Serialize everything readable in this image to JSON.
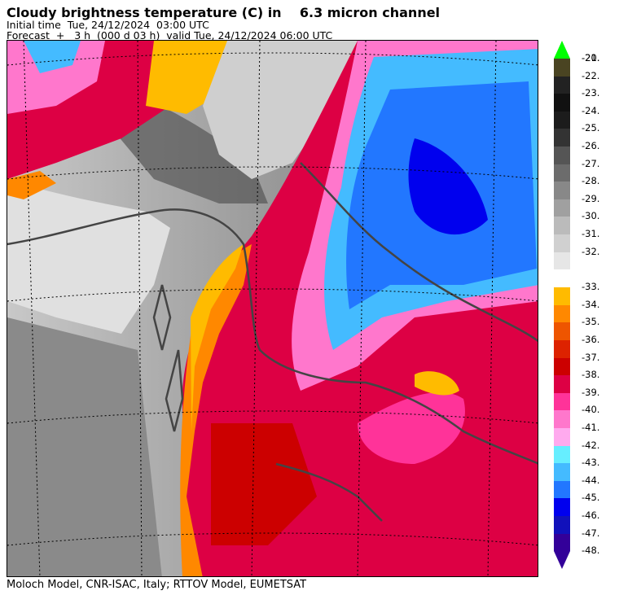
{
  "header": {
    "title": "Cloudy brightness temperature (C) in    6.3 micron channel",
    "initial_time": "Initial time  Tue, 24/12/2024  03:00 UTC",
    "forecast": "Forecast  +   3 h  (000 d 03 h)  valid Tue, 24/12/2024 06:00 UTC"
  },
  "footer": "Moloch Model, CNR-ISAC, Italy; RTTOV Model, EUMETSAT",
  "legend": {
    "upper": [
      {
        "label": "-20.",
        "color": "#66aa22"
      },
      {
        "label": "-21.",
        "color": "#4a4422"
      },
      {
        "label": "-22.",
        "color": "#222222"
      },
      {
        "label": "-23.",
        "color": "#111111"
      },
      {
        "label": "-24.",
        "color": "#1c1c1c"
      },
      {
        "label": "-25.",
        "color": "#333333"
      },
      {
        "label": "-26.",
        "color": "#555555"
      },
      {
        "label": "-27.",
        "color": "#6c6c6c"
      },
      {
        "label": "-28.",
        "color": "#888888"
      },
      {
        "label": "-29.",
        "color": "#a0a0a0"
      },
      {
        "label": "-30.",
        "color": "#bbbbbb"
      },
      {
        "label": "-31.",
        "color": "#d0d0d0"
      },
      {
        "label": "-32.",
        "color": "#e6e6e6"
      }
    ],
    "lower": [
      {
        "label": "-33.",
        "color": "#ffbb00"
      },
      {
        "label": "-34.",
        "color": "#ff8800"
      },
      {
        "label": "-35.",
        "color": "#ee5500"
      },
      {
        "label": "-36.",
        "color": "#dd2200"
      },
      {
        "label": "-37.",
        "color": "#cc0000"
      },
      {
        "label": "-38.",
        "color": "#dd0044"
      },
      {
        "label": "-39.",
        "color": "#ff3399"
      },
      {
        "label": "-40.",
        "color": "#ff77cc"
      },
      {
        "label": "-41.",
        "color": "#ffaaee"
      },
      {
        "label": "-42.",
        "color": "#66eeff"
      },
      {
        "label": "-43.",
        "color": "#44bbff"
      },
      {
        "label": "-44.",
        "color": "#2277ff"
      },
      {
        "label": "-45.",
        "color": "#0000ee"
      },
      {
        "label": "-46.",
        "color": "#1111bb"
      },
      {
        "label": "-47.",
        "color": "#330099"
      },
      {
        "label": "-48.",
        "color": "#330099"
      }
    ],
    "top_arrow_color": "#00ff00",
    "bottom_arrow_color": "#330099"
  }
}
